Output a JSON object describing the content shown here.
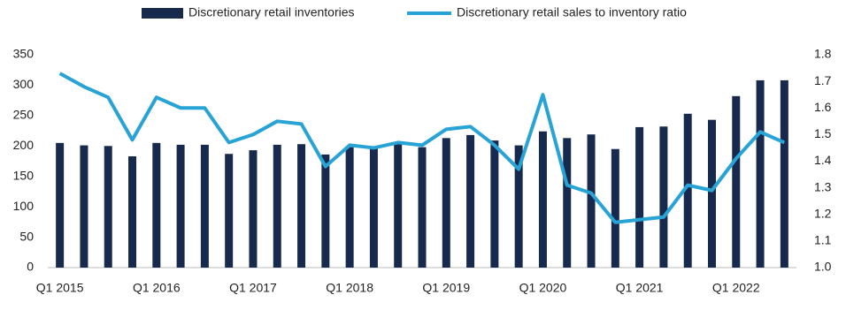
{
  "chart_data": {
    "type": "bar-line",
    "categories": [
      "Q1 2015",
      null,
      null,
      null,
      "Q1 2016",
      null,
      null,
      null,
      "Q1 2017",
      null,
      null,
      null,
      "Q1 2018",
      null,
      null,
      null,
      "Q1 2019",
      null,
      null,
      null,
      "Q1 2020",
      null,
      null,
      null,
      "Q1 2021",
      null,
      null,
      null,
      "Q1 2022",
      null,
      null
    ],
    "series": [
      {
        "name": "Discretionary retail inventories",
        "type": "bar",
        "color": "#172a4e",
        "values": [
          205,
          201,
          200,
          183,
          205,
          202,
          202,
          187,
          193,
          202,
          203,
          186,
          198,
          197,
          203,
          198,
          213,
          218,
          209,
          201,
          224,
          213,
          219,
          195,
          231,
          232,
          253,
          243,
          282,
          308,
          308
        ]
      },
      {
        "name": "Discretionary retail sales to inventory ratio",
        "type": "line",
        "axis": "y2",
        "color": "#27a3d6",
        "values": [
          1.73,
          1.68,
          1.64,
          1.48,
          1.64,
          1.6,
          1.6,
          1.47,
          1.5,
          1.55,
          1.54,
          1.38,
          1.46,
          1.45,
          1.47,
          1.46,
          1.52,
          1.53,
          1.46,
          1.37,
          1.65,
          1.31,
          1.28,
          1.17,
          1.18,
          1.19,
          1.31,
          1.29,
          1.41,
          1.51,
          1.47
        ]
      }
    ],
    "ylim": [
      0,
      350
    ],
    "yticks": [
      0,
      50,
      100,
      150,
      200,
      250,
      300,
      350
    ],
    "y2lim": [
      1,
      1.8
    ],
    "y2ticks": [
      {
        "value": 1,
        "label": "1.0"
      },
      1.1,
      1.2,
      1.3,
      1.4,
      1.5,
      1.6,
      1.7,
      1.8
    ],
    "legend": "top"
  }
}
